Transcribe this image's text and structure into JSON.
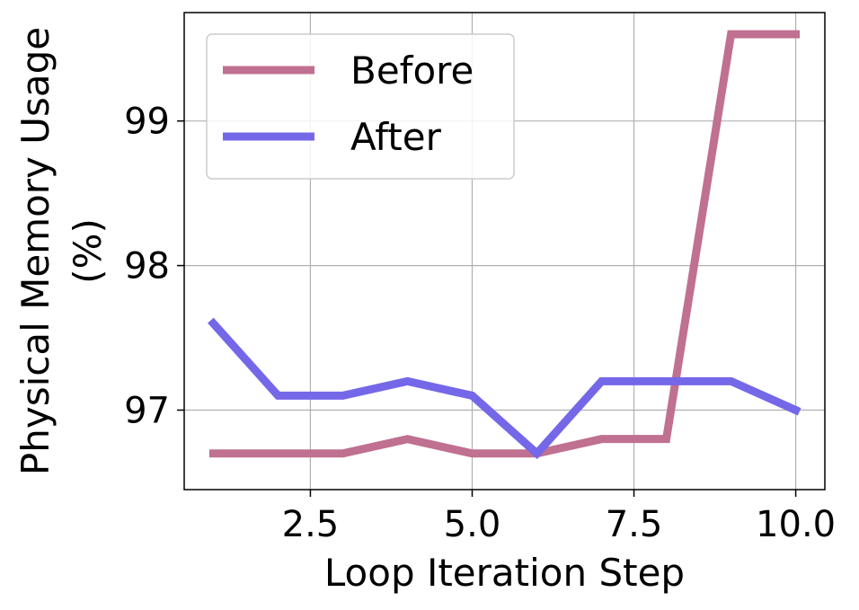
{
  "chart_data": {
    "type": "line",
    "title": "",
    "xlabel": "Loop Iteration Step",
    "ylabel_line1": "Physical Memory Usage",
    "ylabel_line2": "(%)",
    "xlim": [
      0.55,
      10.45
    ],
    "ylim": [
      96.45,
      99.75
    ],
    "xticks": [
      2.5,
      5.0,
      7.5,
      10.0
    ],
    "xtick_labels": [
      "2.5",
      "5.0",
      "7.5",
      "10.0"
    ],
    "yticks": [
      97,
      98,
      99
    ],
    "ytick_labels": [
      "97",
      "98",
      "99"
    ],
    "grid": true,
    "legend_position": "upper-left",
    "x": [
      1,
      2,
      3,
      4,
      5,
      6,
      7,
      8,
      9,
      10
    ],
    "series": [
      {
        "name": "Before",
        "color": "#c07090",
        "values": [
          96.7,
          96.7,
          96.7,
          96.8,
          96.7,
          96.7,
          96.8,
          96.8,
          99.6,
          99.6
        ]
      },
      {
        "name": "After",
        "color": "#7468e8",
        "values": [
          97.6,
          97.1,
          97.1,
          97.2,
          97.1,
          96.7,
          97.2,
          97.2,
          97.2,
          97.0
        ]
      }
    ]
  }
}
